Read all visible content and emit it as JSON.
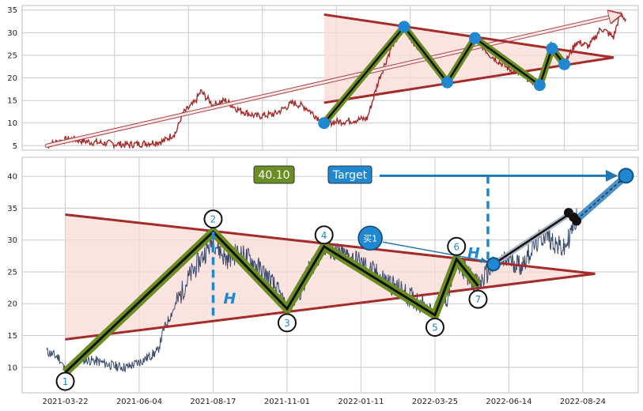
{
  "chart_data": [
    {
      "type": "line",
      "panel": "overview",
      "ylim": [
        4,
        36
      ],
      "yticks": [
        5,
        10,
        15,
        20,
        25,
        30,
        35
      ],
      "grid": true,
      "colors": {
        "price": "#a52a2a",
        "triangle": "#a52a2a",
        "fill": "#f9d9d6",
        "zigzag": "#6b8e23",
        "pivot": "#1f88d0",
        "arrow": "#f6cfcf"
      },
      "triangle": {
        "top_start": [
          0.49,
          34
        ],
        "top_end": [
          0.96,
          24.5
        ],
        "bottom_start": [
          0.49,
          14.5
        ],
        "bottom_end": [
          0.96,
          24.5
        ]
      },
      "zigzag": [
        [
          0.49,
          10
        ],
        [
          0.62,
          31.3
        ],
        [
          0.69,
          19
        ],
        [
          0.735,
          28.8
        ],
        [
          0.84,
          18.4
        ],
        [
          0.86,
          26.5
        ],
        [
          0.88,
          23
        ]
      ],
      "pivots": [
        [
          0.49,
          10
        ],
        [
          0.62,
          31.3
        ],
        [
          0.69,
          19
        ],
        [
          0.735,
          28.8
        ],
        [
          0.84,
          18.4
        ],
        [
          0.86,
          26.5
        ],
        [
          0.88,
          23
        ]
      ],
      "trend_arrow": {
        "from": [
          0.04,
          5
        ],
        "to": [
          0.97,
          34
        ]
      }
    },
    {
      "type": "line",
      "panel": "detail",
      "ylim": [
        6,
        43
      ],
      "yticks": [
        10,
        15,
        20,
        25,
        30,
        35,
        40
      ],
      "xticks": [
        "2021-03-22",
        "2021-06-04",
        "2021-08-17",
        "2021-11-01",
        "2022-01-11",
        "2022-03-25",
        "2022-06-14",
        "2022-08-24"
      ],
      "grid": true,
      "colors": {
        "price": "#3a4a6b",
        "triangle": "#a52a2a",
        "fill": "#f9d9d6",
        "zigzag": "#6b8e23",
        "accent": "#1f88d0",
        "buy_label": "#1f88d0"
      },
      "triangle": {
        "top_start": [
          0.07,
          34
        ],
        "top_end": [
          0.93,
          24.7
        ],
        "bottom_start": [
          0.07,
          14.4
        ],
        "bottom_end": [
          0.93,
          24.7
        ]
      },
      "zigzag": [
        {
          "label": "1",
          "x": 0.07,
          "y": 9.2,
          "label_y": 7.8
        },
        {
          "label": "2",
          "x": 0.31,
          "y": 31.3,
          "label_y": 33.3
        },
        {
          "label": "3",
          "x": 0.43,
          "y": 19.2,
          "label_y": 17.0
        },
        {
          "label": "4",
          "x": 0.49,
          "y": 29.0,
          "label_y": 30.8
        },
        {
          "label": "5",
          "x": 0.67,
          "y": 18.2,
          "label_y": 16.3
        },
        {
          "label": "6",
          "x": 0.705,
          "y": 27.0,
          "label_y": 29.0
        },
        {
          "label": "7",
          "x": 0.74,
          "y": 22.8,
          "label_y": 20.7
        }
      ],
      "buy_point": {
        "x": 0.765,
        "y": 26.2
      },
      "pattern_height_label": "H",
      "buy_label": "买1",
      "value_label": "40.10",
      "target_label": "Target",
      "target": {
        "x": 0.98,
        "y": 40.1
      }
    }
  ]
}
